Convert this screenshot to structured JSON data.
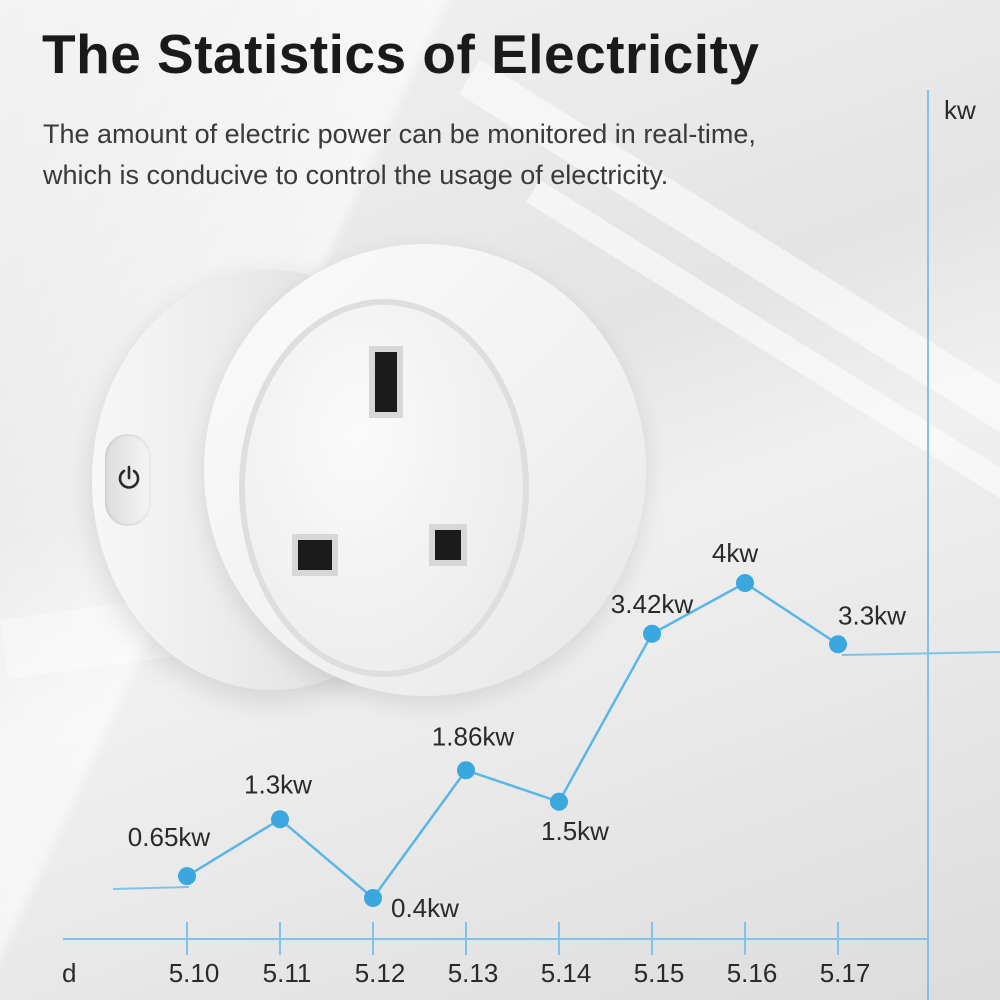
{
  "header": {
    "title": "The Statistics of Electricity",
    "subtitle_line1": "The amount of electric power can be monitored in real-time,",
    "subtitle_line2": "which is conducive to control the usage of electricity."
  },
  "colors": {
    "accent": "#3aa7de",
    "axis": "#7fc3e8",
    "text": "#2a2a2a"
  },
  "chart_data": {
    "type": "line",
    "title": "",
    "xlabel": "d",
    "ylabel": "kw",
    "categories": [
      "5.10",
      "5.11",
      "5.12",
      "5.13",
      "5.14",
      "5.15",
      "5.16",
      "5.17"
    ],
    "series": [
      {
        "values": [
          0.65,
          1.3,
          0.4,
          1.86,
          1.5,
          3.42,
          4,
          3.3
        ],
        "labels": [
          "0.65kw",
          "1.3kw",
          "0.4kw",
          "1.86kw",
          "1.5kw",
          "3.42kw",
          "4kw",
          "3.3kw"
        ]
      }
    ],
    "grid": false,
    "legend": "none"
  }
}
